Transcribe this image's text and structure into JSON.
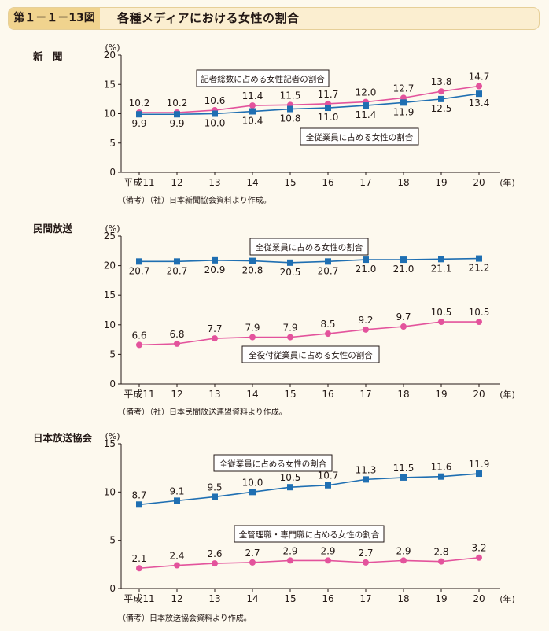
{
  "header": {
    "figure_number": "第１－１－13図",
    "title": "各種メディアにおける女性の割合"
  },
  "colors": {
    "blue": "#1f6fb2",
    "pink": "#e3539c",
    "frame": "#231815"
  },
  "chart_data": [
    {
      "type": "line",
      "panel_label": "新　聞",
      "ylabel": "(%)",
      "xunit": "(年)",
      "categories": [
        "平成11",
        "12",
        "13",
        "14",
        "15",
        "16",
        "17",
        "18",
        "19",
        "20"
      ],
      "ylim": [
        0,
        20
      ],
      "yticks": [
        0,
        5,
        10,
        15,
        20
      ],
      "series": [
        {
          "name": "記者総数に占める女性記者の割合",
          "color": "#e3539c",
          "marker": "circle",
          "labels_position": "above",
          "values": [
            10.2,
            10.2,
            10.6,
            11.4,
            11.5,
            11.7,
            12.0,
            12.7,
            13.8,
            14.7
          ],
          "labels": [
            "10.2",
            "10.2",
            "10.6",
            "11.4",
            "11.5",
            "11.7",
            "12.0",
            "12.7",
            "13.8",
            "14.7"
          ]
        },
        {
          "name": "全従業員に占める女性の割合",
          "color": "#1f6fb2",
          "marker": "square",
          "labels_position": "below",
          "values": [
            9.9,
            9.9,
            10.0,
            10.4,
            10.8,
            11.0,
            11.4,
            11.9,
            12.5,
            13.4
          ],
          "labels": [
            "9.9",
            "9.9",
            "10.0",
            "10.4",
            "10.8",
            "11.0",
            "11.4",
            "11.9",
            "12.5",
            "13.4"
          ]
        }
      ],
      "note": "（備考）（社）日本新聞協会資料より作成。"
    },
    {
      "type": "line",
      "panel_label": "民間放送",
      "ylabel": "(%)",
      "xunit": "(年)",
      "categories": [
        "平成11",
        "12",
        "13",
        "14",
        "15",
        "16",
        "17",
        "18",
        "19",
        "20"
      ],
      "ylim": [
        0,
        25
      ],
      "yticks": [
        0,
        5,
        10,
        15,
        20,
        25
      ],
      "series": [
        {
          "name": "全従業員に占める女性の割合",
          "color": "#1f6fb2",
          "marker": "square",
          "labels_position": "below",
          "values": [
            20.7,
            20.7,
            20.9,
            20.8,
            20.5,
            20.7,
            21.0,
            21.0,
            21.1,
            21.2
          ],
          "labels": [
            "20.7",
            "20.7",
            "20.9",
            "20.8",
            "20.5",
            "20.7",
            "21.0",
            "21.0",
            "21.1",
            "21.2"
          ]
        },
        {
          "name": "全役付従業員に占める女性の割合",
          "color": "#e3539c",
          "marker": "circle",
          "labels_position": "above",
          "values": [
            6.6,
            6.8,
            7.7,
            7.9,
            7.9,
            8.5,
            9.2,
            9.7,
            10.5,
            10.5
          ],
          "labels": [
            "6.6",
            "6.8",
            "7.7",
            "7.9",
            "7.9",
            "8.5",
            "9.2",
            "9.7",
            "10.5",
            "10.5"
          ]
        }
      ],
      "note": "（備考）（社）日本民間放送連盟資料より作成。"
    },
    {
      "type": "line",
      "panel_label": "日本放送協会",
      "ylabel": "(%)",
      "xunit": "(年)",
      "categories": [
        "平成11",
        "12",
        "13",
        "14",
        "15",
        "16",
        "17",
        "18",
        "19",
        "20"
      ],
      "ylim": [
        0,
        15
      ],
      "yticks": [
        0,
        5,
        10,
        15
      ],
      "series": [
        {
          "name": "全従業員に占める女性の割合",
          "color": "#1f6fb2",
          "marker": "square",
          "labels_position": "above",
          "values": [
            8.7,
            9.1,
            9.5,
            10.0,
            10.5,
            10.7,
            11.3,
            11.5,
            11.6,
            11.9
          ],
          "labels": [
            "8.7",
            "9.1",
            "9.5",
            "10.0",
            "10.5",
            "10.7",
            "11.3",
            "11.5",
            "11.6",
            "11.9"
          ]
        },
        {
          "name": "全管理職・専門職に占める女性の割合",
          "color": "#e3539c",
          "marker": "circle",
          "labels_position": "above",
          "values": [
            2.1,
            2.4,
            2.6,
            2.7,
            2.9,
            2.9,
            2.7,
            2.9,
            2.8,
            3.2
          ],
          "labels": [
            "2.1",
            "2.4",
            "2.6",
            "2.7",
            "2.9",
            "2.9",
            "2.7",
            "2.9",
            "2.8",
            "3.2"
          ]
        }
      ],
      "note": "（備考）日本放送協会資料より作成。"
    }
  ]
}
